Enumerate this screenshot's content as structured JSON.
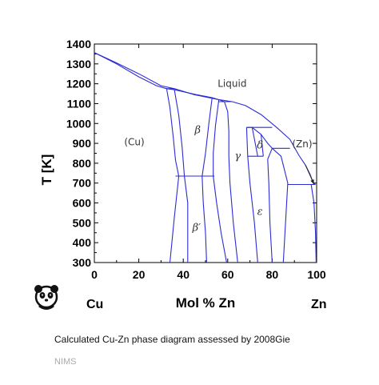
{
  "chart_data": {
    "type": "phase-diagram",
    "xlabel": "Mol % Zn",
    "ylabel": "T [K]",
    "xlim": [
      0,
      100
    ],
    "ylim": [
      300,
      1400
    ],
    "x_ticks": [
      0,
      20,
      40,
      60,
      80,
      100
    ],
    "y_ticks": [
      300,
      400,
      500,
      600,
      700,
      800,
      900,
      1000,
      1100,
      1200,
      1300,
      1400
    ],
    "grid": false,
    "left_component": "Cu",
    "right_component": "Zn",
    "phase_labels": [
      {
        "text": "Liquid",
        "x": 62,
        "y": 1185
      },
      {
        "text": "(Cu)",
        "x": 18,
        "y": 890
      },
      {
        "text": "β",
        "x": 46.5,
        "y": 950
      },
      {
        "text": "γ",
        "x": 64.5,
        "y": 820
      },
      {
        "text": "δ",
        "x": 74.5,
        "y": 875
      },
      {
        "text": "(Zn)",
        "x": 93.5,
        "y": 880
      },
      {
        "text": "β′",
        "x": 46,
        "y": 460
      },
      {
        "text": "ε",
        "x": 74.5,
        "y": 540
      }
    ],
    "boundaries": [
      {
        "name": "liquidus",
        "points": [
          [
            0,
            1357
          ],
          [
            10,
            1305
          ],
          [
            20,
            1250
          ],
          [
            30,
            1190
          ],
          [
            36,
            1175
          ],
          [
            45,
            1145
          ],
          [
            55,
            1122
          ],
          [
            62,
            1110
          ],
          [
            68,
            1090
          ],
          [
            75,
            1045
          ],
          [
            82,
            980
          ],
          [
            88,
            920
          ],
          [
            92,
            840
          ],
          [
            95,
            790
          ],
          [
            97,
            745
          ],
          [
            98.5,
            700
          ],
          [
            99.5,
            693
          ]
        ]
      },
      {
        "name": "solidus-cu",
        "points": [
          [
            0,
            1357
          ],
          [
            10,
            1300
          ],
          [
            20,
            1235
          ],
          [
            28,
            1190
          ],
          [
            32.5,
            1175
          ]
        ]
      },
      {
        "name": "solidus-cu-beta",
        "points": [
          [
            32.5,
            1175
          ],
          [
            36,
            1170
          ],
          [
            40,
            1160
          ],
          [
            46,
            1145
          ],
          [
            53,
            1130
          ],
          [
            56,
            1120
          ],
          [
            58.5,
            1110
          ]
        ]
      },
      {
        "name": "cu-solvus",
        "points": [
          [
            32.5,
            1175
          ],
          [
            34,
            1080
          ],
          [
            35.5,
            930
          ],
          [
            36.5,
            815
          ],
          [
            38,
            735
          ],
          [
            36,
            530
          ],
          [
            34,
            300
          ]
        ]
      },
      {
        "name": "beta-left",
        "points": [
          [
            36,
            1170
          ],
          [
            38,
            1040
          ],
          [
            39.5,
            880
          ],
          [
            40.5,
            735
          ],
          [
            42,
            600
          ],
          [
            42,
            300
          ]
        ]
      },
      {
        "name": "beta-right",
        "points": [
          [
            53,
            1130
          ],
          [
            51.5,
            1000
          ],
          [
            50,
            850
          ],
          [
            48.5,
            735
          ],
          [
            49,
            600
          ],
          [
            50,
            450
          ],
          [
            50.5,
            300
          ]
        ]
      },
      {
        "name": "gamma-left",
        "points": [
          [
            56,
            1120
          ],
          [
            54.5,
            990
          ],
          [
            53.5,
            850
          ],
          [
            53.5,
            735
          ],
          [
            55,
            600
          ],
          [
            57,
            450
          ],
          [
            59.5,
            300
          ]
        ]
      },
      {
        "name": "gamma-beta-right",
        "points": [
          [
            58.5,
            1110
          ],
          [
            60,
            1060
          ],
          [
            60.5,
            960
          ],
          [
            60.5,
            835
          ],
          [
            61,
            700
          ],
          [
            62.5,
            500
          ],
          [
            64.5,
            300
          ]
        ]
      },
      {
        "name": "gamma-right",
        "points": [
          [
            68.5,
            980
          ],
          [
            69,
            835
          ],
          [
            70,
            700
          ],
          [
            72,
            500
          ],
          [
            73.5,
            300
          ]
        ]
      },
      {
        "name": "delta-left",
        "points": [
          [
            68.5,
            980
          ],
          [
            71,
            980
          ],
          [
            73.5,
            835
          ]
        ]
      },
      {
        "name": "delta-epsilon",
        "points": [
          [
            71,
            980
          ],
          [
            75,
            945
          ],
          [
            78,
            900
          ],
          [
            80,
            875
          ]
        ]
      },
      {
        "name": "epsilon-left",
        "points": [
          [
            75,
            945
          ],
          [
            76,
            835
          ]
        ]
      },
      {
        "name": "epsilon-right",
        "points": [
          [
            80,
            875
          ],
          [
            84,
            835
          ],
          [
            87,
            700
          ],
          [
            86,
            500
          ],
          [
            85,
            300
          ]
        ]
      },
      {
        "name": "epsilon-liquid",
        "points": [
          [
            80,
            875
          ],
          [
            78,
            820
          ],
          [
            78.5,
            700
          ],
          [
            79,
            500
          ],
          [
            80,
            300
          ]
        ]
      },
      {
        "name": "zn-solvus",
        "points": [
          [
            97.5,
            695
          ],
          [
            98.8,
            600
          ],
          [
            99.5,
            450
          ],
          [
            99.8,
            300
          ]
        ]
      },
      {
        "name": "isotherm-1175",
        "points": [
          [
            32.5,
            1175
          ],
          [
            36,
            1175
          ]
        ]
      },
      {
        "name": "isotherm-1110",
        "points": [
          [
            56,
            1110
          ],
          [
            62,
            1110
          ]
        ]
      },
      {
        "name": "isotherm-980",
        "points": [
          [
            68.5,
            980
          ],
          [
            80,
            980
          ]
        ]
      },
      {
        "name": "isotherm-875",
        "points": [
          [
            80,
            875
          ],
          [
            88,
            875
          ]
        ]
      },
      {
        "name": "isotherm-835",
        "points": [
          [
            69,
            835
          ],
          [
            76,
            835
          ]
        ]
      },
      {
        "name": "isotherm-735",
        "points": [
          [
            36.5,
            735
          ],
          [
            54,
            735
          ]
        ]
      },
      {
        "name": "isotherm-693",
        "points": [
          [
            87,
            693
          ],
          [
            99.5,
            693
          ]
        ]
      }
    ],
    "arrow": {
      "from": [
        95,
        790
      ],
      "to": [
        98.8,
        695
      ]
    }
  },
  "caption": "Calculated Cu-Zn phase diagram assessed by 2008Gie",
  "source": "NIMS",
  "colors": {
    "boundary": "#2b2bd6",
    "axis": "#000000"
  },
  "logo": {
    "icon": "panda-icon"
  }
}
